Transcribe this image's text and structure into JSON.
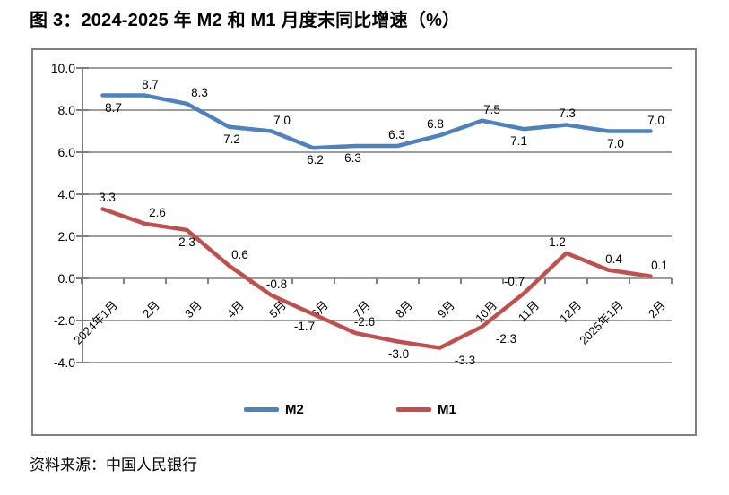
{
  "title": "图 3：2024-2025 年 M2 和 M1 月度末同比增速（%）",
  "source": "资料来源：中国人民银行",
  "chart_data": {
    "type": "line",
    "title": "图 3：2024-2025 年 M2 和 M1 月度末同比增速（%）",
    "categories": [
      "2024年1月",
      "2月",
      "3月",
      "4月",
      "5月",
      "6月",
      "7月",
      "8月",
      "9月",
      "10月",
      "11月",
      "12月",
      "2025年1月",
      "2月"
    ],
    "series": [
      {
        "name": "M2",
        "color": "#4F81BD",
        "values": [
          8.7,
          8.7,
          8.3,
          7.2,
          7.0,
          6.2,
          6.3,
          6.3,
          6.8,
          7.5,
          7.1,
          7.3,
          7.0,
          7.0
        ],
        "label_side": [
          "below",
          "above",
          "above",
          "below",
          "above",
          "below",
          "below",
          "above",
          "above",
          "above",
          "below",
          "above",
          "below",
          "above"
        ],
        "label_dx": [
          12,
          6,
          14,
          3,
          12,
          2,
          -3,
          -1,
          -5,
          11,
          -6,
          1,
          8,
          6
        ]
      },
      {
        "name": "M1",
        "color": "#C0504D",
        "values": [
          3.3,
          2.6,
          2.3,
          0.6,
          -0.8,
          -1.7,
          -2.6,
          -3.0,
          -3.3,
          -2.3,
          -0.7,
          1.2,
          0.4,
          0.1
        ],
        "label_side": [
          "above",
          "above",
          "below",
          "above",
          "above",
          "below",
          "above",
          "below",
          "below",
          "below",
          "above",
          "above",
          "above",
          "above"
        ],
        "label_dx": [
          5,
          14,
          0,
          12,
          6,
          -10,
          10,
          1,
          28,
          27,
          -11,
          -10,
          6,
          10
        ]
      }
    ],
    "y_ticks": [
      10.0,
      8.0,
      6.0,
      4.0,
      2.0,
      0.0,
      -2.0,
      -4.0
    ],
    "ylim": [
      -4.0,
      10.0
    ],
    "y_tick_decimals": 1,
    "data_label_decimals": 1,
    "grid": true,
    "legend_position": "bottom",
    "grid_color": "#9d9d9d",
    "axis_color": "#7f7f7f",
    "xlabel": "",
    "ylabel": ""
  }
}
